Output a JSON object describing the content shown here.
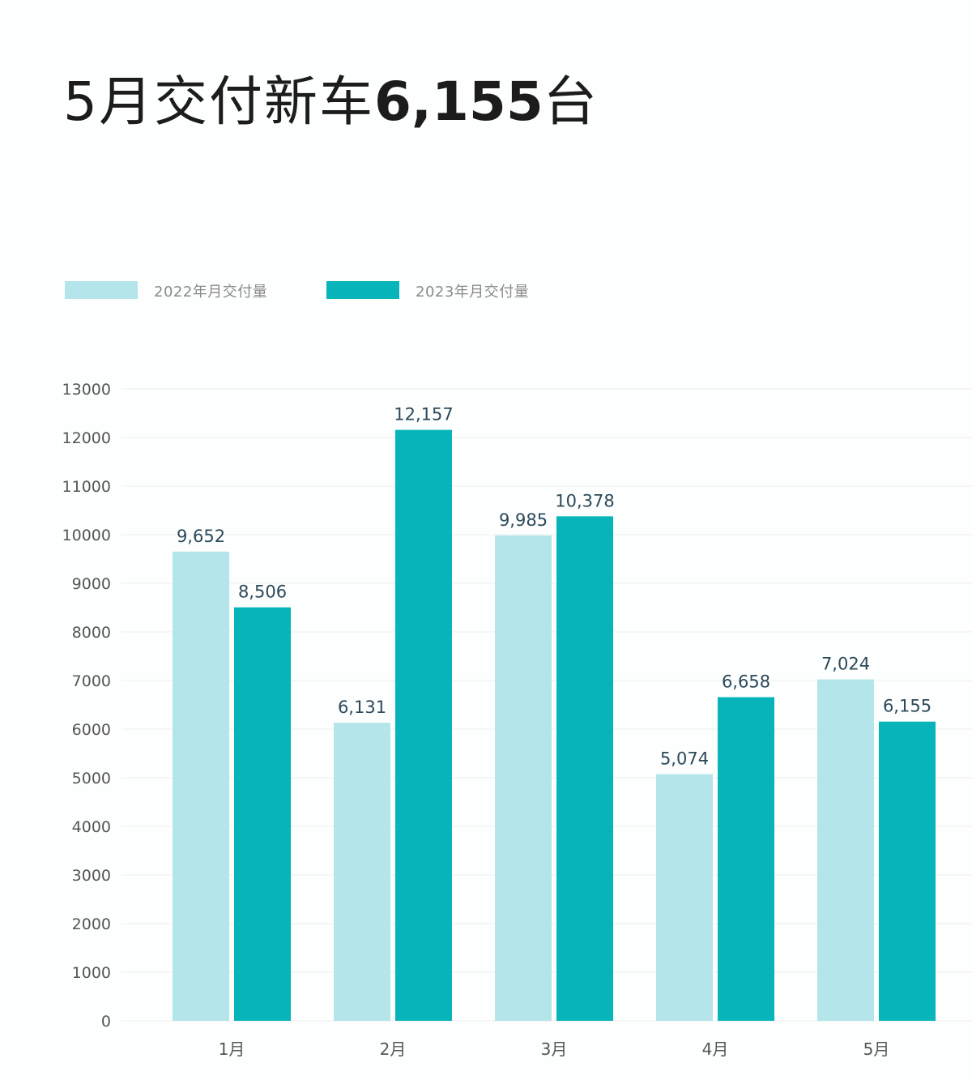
{
  "header": {
    "title_prefix": "5月交付新车",
    "title_number": "6,155",
    "title_suffix": "台"
  },
  "colors": {
    "series_2022": "#b3e5ea",
    "series_2023": "#06b4ba",
    "grid": "#eeeeee",
    "tick_text": "#555555",
    "value_text": "#2c4a5a"
  },
  "chart_data": {
    "type": "bar",
    "categories": [
      "1月",
      "2月",
      "3月",
      "4月",
      "5月"
    ],
    "series": [
      {
        "name": "2022年月交付量",
        "values": [
          9652,
          6131,
          9985,
          5074,
          7024
        ],
        "labels": [
          "9,652",
          "6,131",
          "9,985",
          "5,074",
          "7,024"
        ]
      },
      {
        "name": "2023年月交付量",
        "values": [
          8506,
          12157,
          10378,
          6658,
          6155
        ],
        "labels": [
          "8,506",
          "12,157",
          "10,378",
          "6,658",
          "6,155"
        ]
      }
    ],
    "ylim": [
      0,
      13000
    ],
    "yticks": [
      0,
      1000,
      2000,
      3000,
      4000,
      5000,
      6000,
      7000,
      8000,
      9000,
      10000,
      11000,
      12000,
      13000
    ],
    "grid": true,
    "legend_position": "top-left"
  }
}
